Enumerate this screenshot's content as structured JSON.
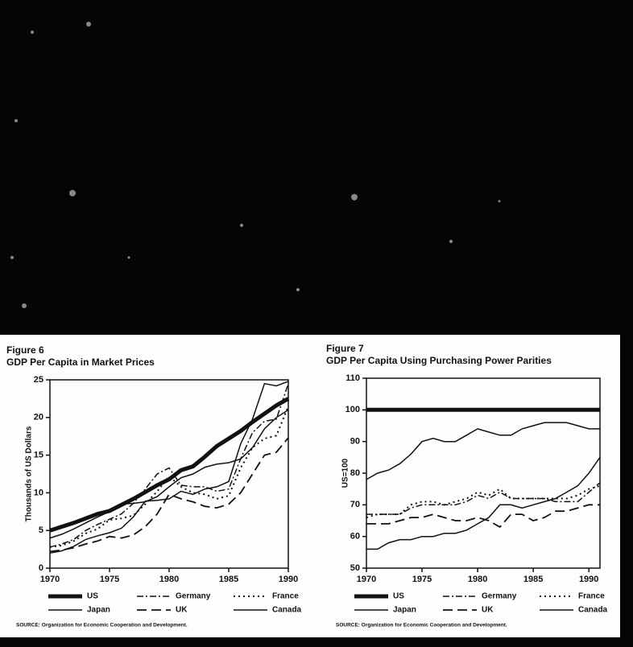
{
  "chart_data": [
    {
      "type": "line",
      "label": "Figure 6",
      "title": "GDP Per Capita in Market Prices",
      "y_label": "Thousands of US Dollars",
      "x": [
        1970,
        1971,
        1972,
        1973,
        1974,
        1975,
        1976,
        1977,
        1978,
        1979,
        1980,
        1981,
        1982,
        1983,
        1984,
        1985,
        1986,
        1987,
        1988,
        1989,
        1990
      ],
      "xlim": [
        1970,
        1990
      ],
      "xticks": [
        1970,
        1975,
        1980,
        1985,
        1990
      ],
      "ylim": [
        0,
        25
      ],
      "yticks": [
        0,
        5,
        10,
        15,
        20,
        25
      ],
      "series": [
        {
          "name": "US",
          "color": "#111111",
          "dash": "solid",
          "width": 5,
          "values": [
            5.0,
            5.5,
            6.0,
            6.6,
            7.2,
            7.6,
            8.4,
            9.2,
            10.1,
            11.0,
            11.8,
            13.0,
            13.5,
            14.8,
            16.2,
            17.2,
            18.2,
            19.4,
            20.5,
            21.6,
            22.5
          ]
        },
        {
          "name": "Germany",
          "color": "#111111",
          "dash": "dashdot",
          "width": 1.5,
          "values": [
            2.8,
            3.2,
            3.8,
            5.0,
            5.8,
            6.5,
            7.2,
            8.6,
            10.5,
            12.5,
            13.3,
            11.0,
            10.8,
            10.8,
            10.2,
            10.5,
            14.5,
            18.0,
            19.5,
            19.8,
            24.5
          ]
        },
        {
          "name": "France",
          "color": "#111111",
          "dash": "dotted",
          "width": 2,
          "values": [
            2.8,
            3.0,
            3.6,
            4.6,
            5.2,
            6.4,
            6.6,
            7.0,
            8.5,
            10.2,
            12.2,
            10.8,
            10.0,
            9.8,
            9.2,
            9.6,
            13.3,
            16.0,
            17.2,
            17.6,
            21.5
          ]
        },
        {
          "name": "Japan",
          "color": "#111111",
          "dash": "solid",
          "width": 1.5,
          "values": [
            2.0,
            2.3,
            2.9,
            3.8,
            4.3,
            4.7,
            5.3,
            6.8,
            8.9,
            9.0,
            9.2,
            10.2,
            9.8,
            10.5,
            10.8,
            11.5,
            16.5,
            19.8,
            24.5,
            24.2,
            24.8
          ]
        },
        {
          "name": "UK",
          "color": "#111111",
          "dash": "dashed",
          "width": 1.8,
          "values": [
            2.2,
            2.4,
            2.7,
            3.2,
            3.6,
            4.2,
            4.0,
            4.4,
            5.5,
            7.2,
            9.8,
            9.2,
            8.8,
            8.2,
            8.0,
            8.5,
            10.0,
            12.5,
            15.0,
            15.4,
            17.3
          ]
        },
        {
          "name": "Canada",
          "color": "#111111",
          "dash": "solid",
          "width": 1.5,
          "values": [
            4.0,
            4.5,
            5.2,
            6.0,
            6.8,
            7.5,
            8.5,
            8.6,
            8.8,
            9.5,
            10.8,
            12.0,
            12.5,
            13.4,
            13.8,
            14.0,
            14.5,
            16.0,
            18.5,
            20.0,
            21.0
          ]
        }
      ],
      "source": "SOURCE: Organization for Economic Cooperation and Development."
    },
    {
      "type": "line",
      "label": "Figure 7",
      "title": "GDP Per Capita Using Purchasing Power Parities",
      "y_label": "US=100",
      "x": [
        1970,
        1971,
        1972,
        1973,
        1974,
        1975,
        1976,
        1977,
        1978,
        1979,
        1980,
        1981,
        1982,
        1983,
        1984,
        1985,
        1986,
        1987,
        1988,
        1989,
        1990,
        1991
      ],
      "xlim": [
        1970,
        1991
      ],
      "xticks": [
        1970,
        1975,
        1980,
        1985,
        1990
      ],
      "ylim": [
        50,
        110
      ],
      "yticks": [
        50,
        60,
        70,
        80,
        90,
        100,
        110
      ],
      "series": [
        {
          "name": "US",
          "color": "#111111",
          "dash": "solid",
          "width": 5,
          "values": [
            100,
            100,
            100,
            100,
            100,
            100,
            100,
            100,
            100,
            100,
            100,
            100,
            100,
            100,
            100,
            100,
            100,
            100,
            100,
            100,
            100,
            100
          ]
        },
        {
          "name": "Germany",
          "color": "#111111",
          "dash": "dashdot",
          "width": 1.5,
          "values": [
            67,
            67,
            67,
            67,
            69,
            70,
            70,
            70,
            70,
            71,
            73,
            72,
            74,
            72,
            72,
            72,
            72,
            71,
            71,
            71,
            74,
            77
          ]
        },
        {
          "name": "France",
          "color": "#111111",
          "dash": "dotted",
          "width": 2,
          "values": [
            66,
            67,
            67,
            67,
            70,
            71,
            71,
            70,
            71,
            72,
            74,
            73,
            75,
            72,
            72,
            72,
            72,
            72,
            72,
            73,
            75,
            76
          ]
        },
        {
          "name": "Japan",
          "color": "#111111",
          "dash": "solid",
          "width": 1.5,
          "values": [
            56,
            56,
            58,
            59,
            59,
            60,
            60,
            61,
            61,
            62,
            64,
            66,
            70,
            70,
            69,
            70,
            71,
            72,
            74,
            76,
            80,
            85
          ]
        },
        {
          "name": "UK",
          "color": "#111111",
          "dash": "dashed",
          "width": 1.8,
          "values": [
            64,
            64,
            64,
            65,
            66,
            66,
            67,
            66,
            65,
            65,
            66,
            65,
            63,
            67,
            67,
            65,
            66,
            68,
            68,
            69,
            70,
            70
          ]
        },
        {
          "name": "Canada",
          "color": "#111111",
          "dash": "solid",
          "width": 1.5,
          "values": [
            78,
            80,
            81,
            83,
            86,
            90,
            91,
            90,
            90,
            92,
            94,
            93,
            92,
            92,
            94,
            95,
            96,
            96,
            96,
            95,
            94,
            94
          ]
        }
      ],
      "source": "SOURCE: Organization for Economic Cooperation and Development."
    }
  ]
}
